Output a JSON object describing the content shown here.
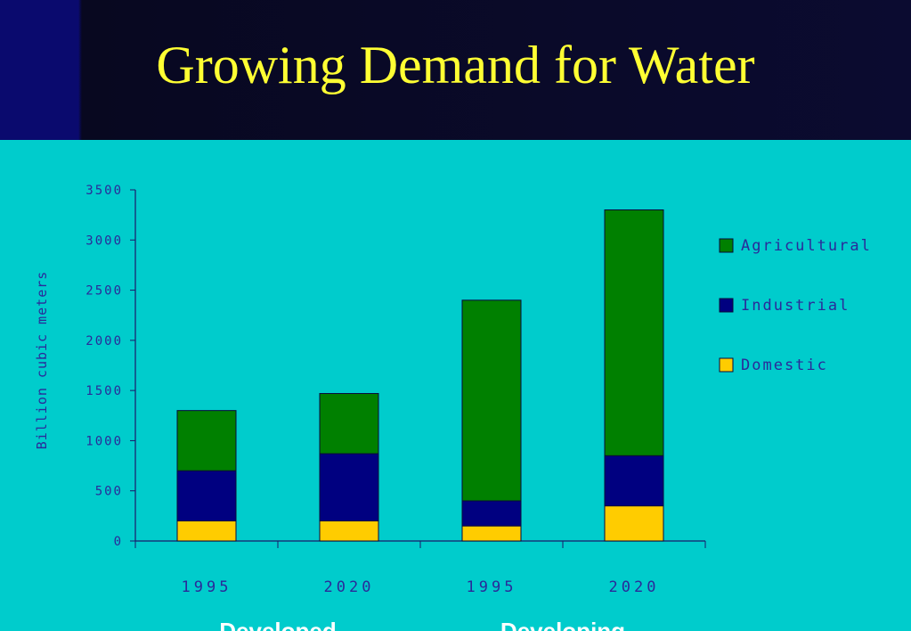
{
  "slide": {
    "title": "Growing Demand for Water"
  },
  "chart_data": {
    "type": "bar",
    "stacked": true,
    "categories": [
      "1995",
      "2020",
      "1995",
      "2020"
    ],
    "groups": [
      {
        "label": "Developed",
        "categories": [
          "1995",
          "2020"
        ]
      },
      {
        "label": "Developing",
        "categories": [
          "1995",
          "2020"
        ]
      }
    ],
    "series": [
      {
        "name": "Domestic",
        "color": "#ffcc00",
        "values": [
          200,
          200,
          150,
          350
        ]
      },
      {
        "name": "Industrial",
        "color": "#000080",
        "values": [
          500,
          670,
          250,
          500
        ]
      },
      {
        "name": "Agricultural",
        "color": "#008000",
        "values": [
          600,
          600,
          2000,
          2450
        ]
      }
    ],
    "legend_order": [
      "Agricultural",
      "Industrial",
      "Domestic"
    ],
    "ylabel": "Billion cubic meters",
    "ylim": [
      0,
      3500
    ],
    "yticks": [
      0,
      500,
      1000,
      1500,
      2000,
      2500,
      3000,
      3500
    ],
    "grid": false,
    "legend_position": "right"
  }
}
